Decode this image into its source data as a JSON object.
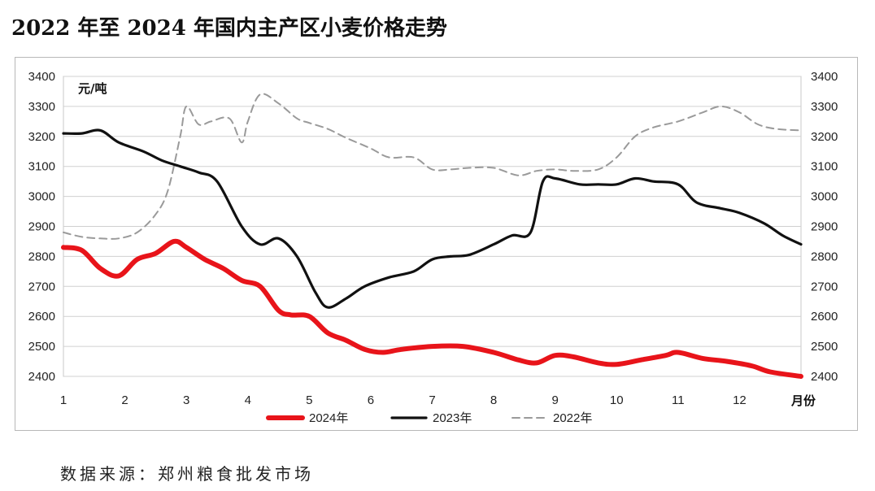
{
  "title": "2022 年至 2024 年国内主产区小麦价格走势",
  "source": "数据来源：郑州粮食批发市场",
  "chart_data": {
    "type": "line",
    "title": "2022 年至 2024 年国内主产区小麦价格走势",
    "ylabel": "元/吨",
    "xlabel": "月份",
    "ylim": [
      2400,
      3400
    ],
    "yticks": [
      2400,
      2500,
      2600,
      2700,
      2800,
      2900,
      3000,
      3100,
      3200,
      3300,
      3400
    ],
    "xlim": [
      1,
      13
    ],
    "xticks": [
      1,
      2,
      3,
      4,
      5,
      6,
      7,
      8,
      9,
      10,
      11,
      12
    ],
    "grid": true,
    "legend_position": "bottom",
    "dual_y_axis": true,
    "series": [
      {
        "name": "2024年",
        "color": "#e8141a",
        "style": "solid",
        "x": [
          1,
          1.3,
          1.6,
          1.9,
          2.2,
          2.5,
          2.8,
          3.0,
          3.3,
          3.6,
          3.9,
          4.2,
          4.5,
          4.7,
          5.0,
          5.3,
          5.6,
          5.9,
          6.2,
          6.5,
          7.0,
          7.5,
          8.0,
          8.4,
          8.7,
          9.0,
          9.3,
          9.7,
          10.0,
          10.4,
          10.8,
          11.0,
          11.4,
          11.8,
          12.2,
          12.5,
          13.0
        ],
        "values": [
          2830,
          2820,
          2760,
          2735,
          2790,
          2810,
          2850,
          2830,
          2790,
          2760,
          2720,
          2700,
          2620,
          2605,
          2600,
          2545,
          2520,
          2490,
          2480,
          2490,
          2500,
          2500,
          2480,
          2455,
          2445,
          2470,
          2465,
          2445,
          2440,
          2455,
          2470,
          2480,
          2460,
          2450,
          2435,
          2415,
          2400
        ]
      },
      {
        "name": "2023年",
        "color": "#111111",
        "style": "solid",
        "x": [
          1,
          1.3,
          1.6,
          1.9,
          2.3,
          2.6,
          2.9,
          3.2,
          3.5,
          3.9,
          4.2,
          4.5,
          4.8,
          5.1,
          5.3,
          5.6,
          5.9,
          6.3,
          6.7,
          7.0,
          7.3,
          7.6,
          8.0,
          8.3,
          8.6,
          8.8,
          9.0,
          9.4,
          9.7,
          10.0,
          10.3,
          10.6,
          11.0,
          11.3,
          11.7,
          12.0,
          12.4,
          12.7,
          13.0
        ],
        "values": [
          3210,
          3210,
          3220,
          3180,
          3150,
          3120,
          3100,
          3080,
          3050,
          2900,
          2840,
          2860,
          2800,
          2680,
          2630,
          2660,
          2700,
          2730,
          2750,
          2790,
          2800,
          2805,
          2840,
          2870,
          2880,
          3050,
          3060,
          3040,
          3040,
          3040,
          3060,
          3050,
          3040,
          2980,
          2960,
          2945,
          2910,
          2870,
          2840
        ]
      },
      {
        "name": "2022年",
        "color": "#9a9a9a",
        "style": "dashed",
        "x": [
          1,
          1.3,
          1.6,
          1.9,
          2.2,
          2.5,
          2.7,
          2.9,
          3.0,
          3.2,
          3.4,
          3.7,
          3.9,
          4.0,
          4.2,
          4.5,
          4.8,
          5.0,
          5.3,
          5.6,
          6.0,
          6.3,
          6.7,
          7.0,
          7.3,
          7.6,
          8.0,
          8.4,
          8.7,
          9.0,
          9.3,
          9.7,
          10.0,
          10.3,
          10.6,
          11.0,
          11.4,
          11.7,
          12.0,
          12.3,
          12.6,
          13.0
        ],
        "values": [
          2880,
          2865,
          2860,
          2860,
          2880,
          2940,
          3020,
          3200,
          3300,
          3240,
          3250,
          3260,
          3180,
          3250,
          3340,
          3310,
          3260,
          3245,
          3225,
          3195,
          3160,
          3130,
          3130,
          3090,
          3090,
          3095,
          3095,
          3070,
          3085,
          3090,
          3085,
          3090,
          3130,
          3200,
          3230,
          3250,
          3280,
          3300,
          3280,
          3240,
          3225,
          3220
        ]
      }
    ]
  }
}
